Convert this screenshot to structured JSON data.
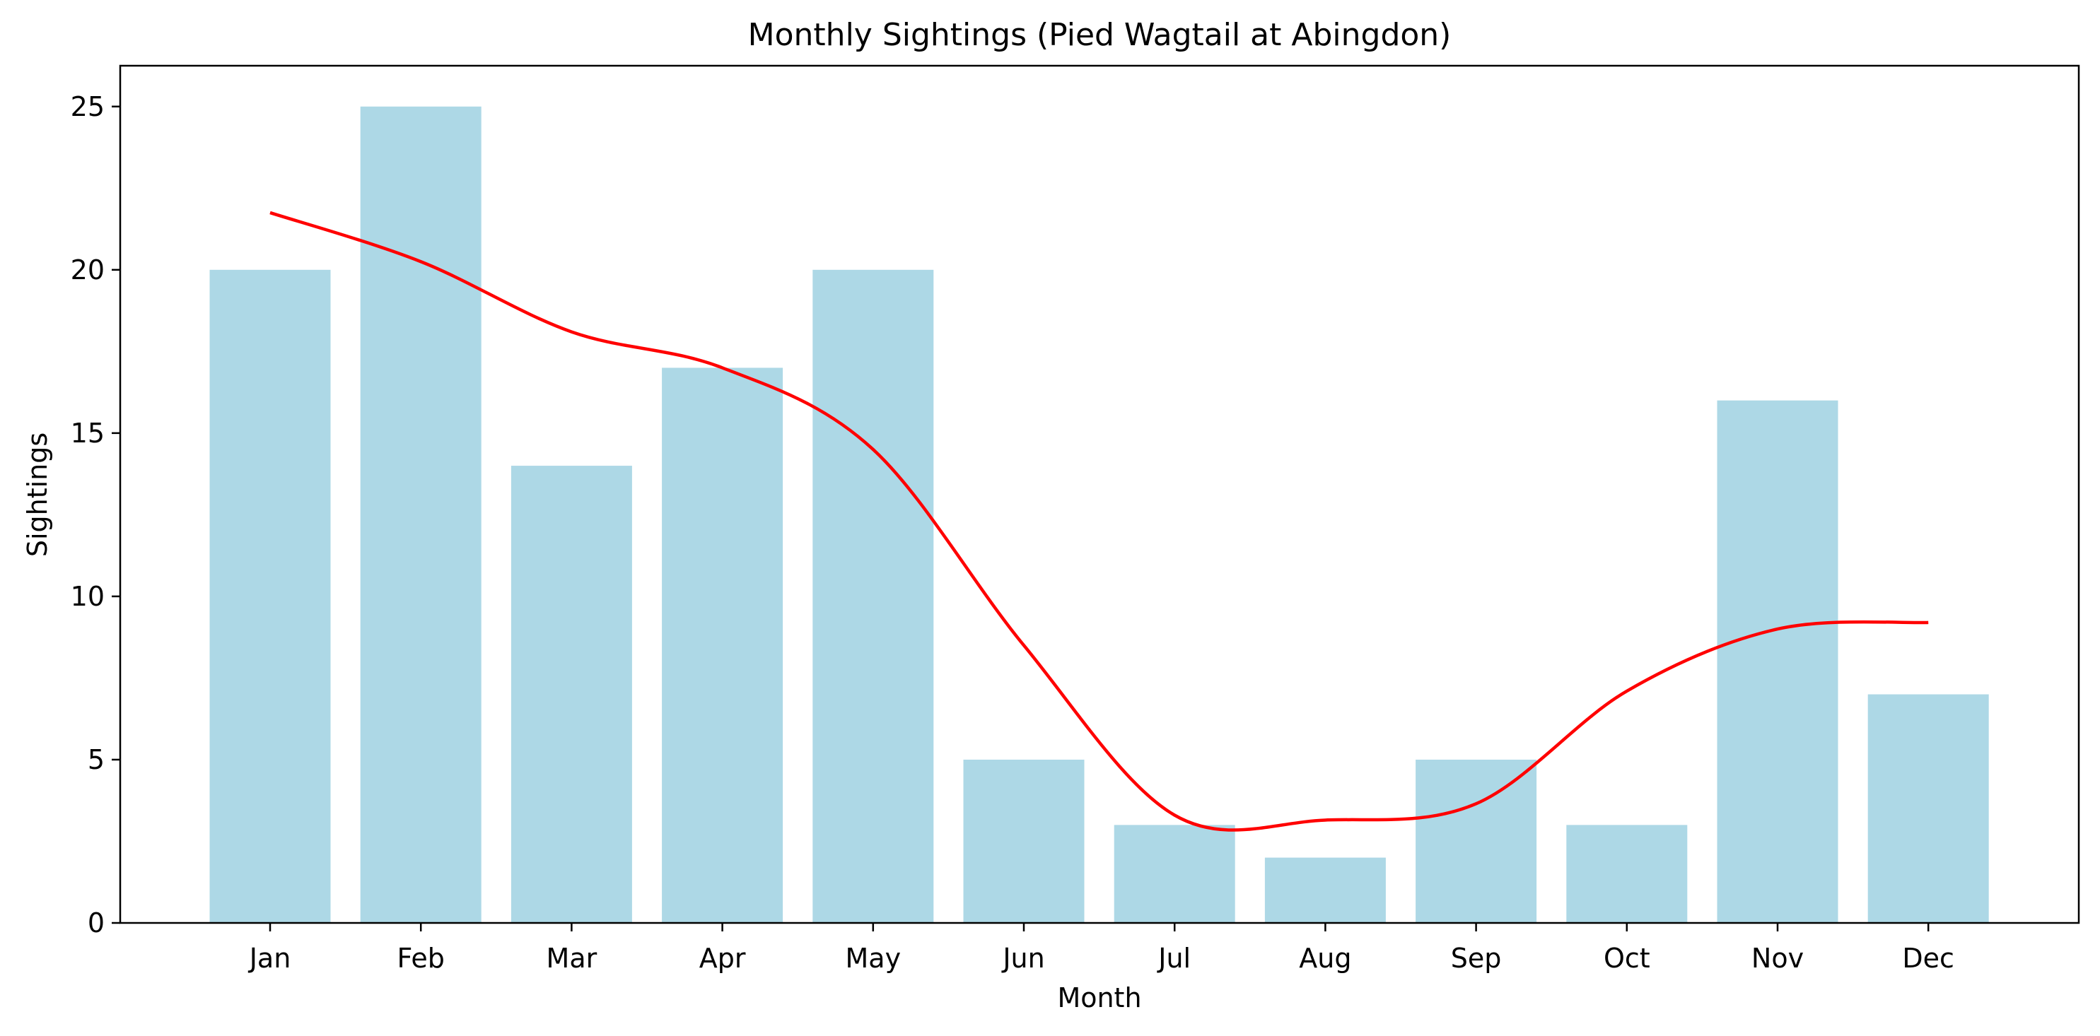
{
  "chart_data": {
    "type": "bar",
    "title": "Monthly Sightings (Pied Wagtail at Abingdon)",
    "xlabel": "Month",
    "ylabel": "Sightings",
    "categories": [
      "Jan",
      "Feb",
      "Mar",
      "Apr",
      "May",
      "Jun",
      "Jul",
      "Aug",
      "Sep",
      "Oct",
      "Nov",
      "Dec"
    ],
    "values": [
      20,
      25,
      14,
      17,
      20,
      5,
      3,
      2,
      5,
      3,
      16,
      7
    ],
    "trend": [
      21.75,
      20.25,
      18.1,
      17.0,
      14.5,
      8.5,
      3.3,
      3.15,
      3.65,
      7.1,
      9.0,
      9.2
    ],
    "ylim": [
      0,
      26.25
    ],
    "yticks": [
      0,
      5,
      10,
      15,
      20,
      25
    ],
    "bar_color": "#add8e6",
    "line_color": "#ff0000",
    "grid": false,
    "legend": "none"
  }
}
